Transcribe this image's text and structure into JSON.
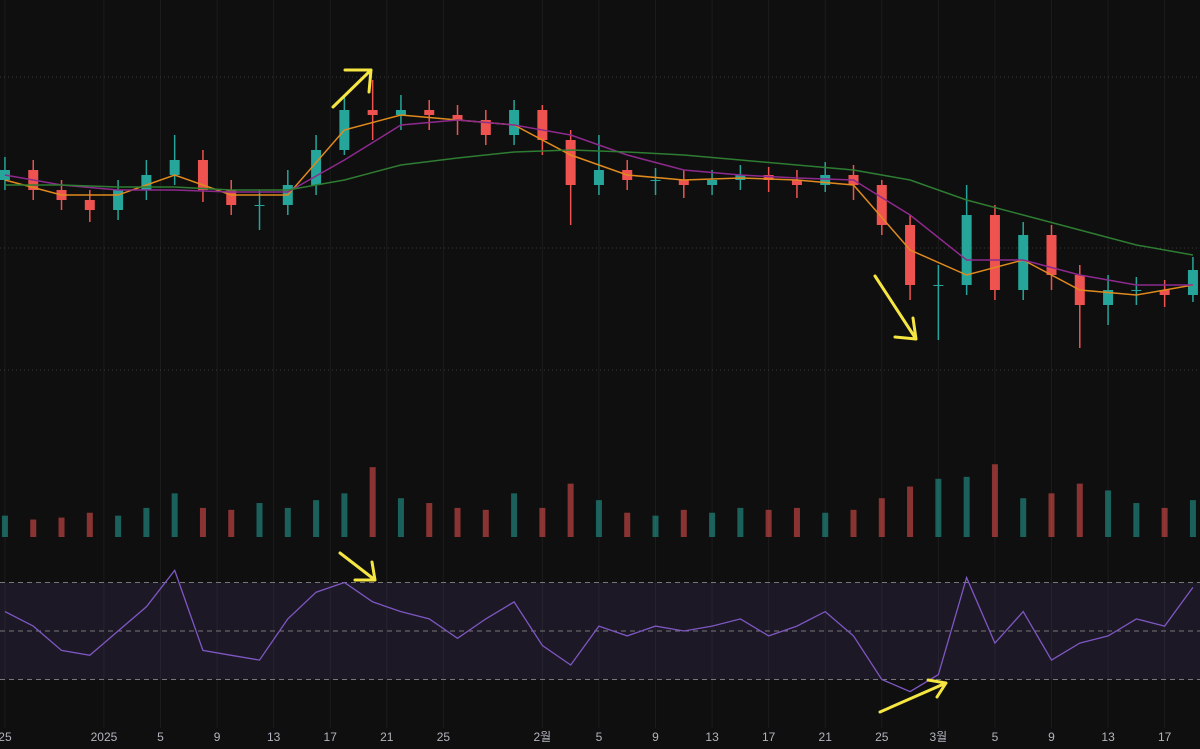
{
  "chart_data": [
    {
      "type": "candlestick",
      "x": [
        0,
        2,
        4,
        6,
        8,
        10,
        12,
        14,
        16,
        18,
        20,
        22,
        24,
        26,
        28,
        30,
        32,
        34,
        36,
        38,
        40,
        42,
        44,
        46,
        48,
        50,
        52,
        54,
        56,
        58,
        60,
        62,
        64,
        66,
        68,
        70,
        72,
        74,
        76,
        78,
        80,
        82,
        84
      ],
      "open": [
        82.0,
        83.0,
        81.0,
        80.0,
        79.0,
        81.0,
        82.5,
        84.0,
        81.0,
        79.5,
        79.5,
        81.5,
        85.0,
        89.0,
        88.5,
        89.0,
        88.5,
        88.0,
        86.5,
        89.0,
        86.0,
        81.5,
        83.0,
        82.0,
        82.0,
        81.5,
        82.0,
        82.5,
        82.0,
        81.5,
        82.5,
        81.5,
        77.5,
        71.5,
        71.5,
        78.5,
        71.0,
        76.5,
        72.5,
        69.5,
        71.0,
        71.0,
        70.5
      ],
      "high": [
        84.3,
        84,
        82,
        81,
        82,
        84,
        86.5,
        85,
        82,
        81,
        83,
        86.5,
        90.5,
        92,
        90.5,
        90,
        89.5,
        89,
        90,
        89.5,
        87,
        86.5,
        84,
        83.2,
        83,
        83,
        83.5,
        83.3,
        83,
        83.8,
        83.5,
        82,
        78.5,
        73.5,
        81.5,
        79.5,
        77.8,
        77.5,
        73.5,
        72.5,
        72.3,
        72,
        74.3
      ],
      "low": [
        81,
        80,
        79,
        77.8,
        78,
        80,
        81.5,
        79.8,
        78.5,
        77,
        78.5,
        80.5,
        84.5,
        86,
        87,
        87,
        86.5,
        85.5,
        85.5,
        84.5,
        77.5,
        80.5,
        81,
        80.5,
        80.2,
        80.5,
        81,
        80.8,
        80.2,
        80.8,
        80,
        76.5,
        70,
        66,
        70.5,
        70,
        70,
        71,
        65.2,
        67.5,
        69.5,
        69.3,
        69.8
      ],
      "close": [
        83.0,
        81.0,
        80.0,
        79.0,
        81.0,
        82.5,
        84.0,
        81.0,
        79.5,
        79.5,
        81.5,
        85.0,
        89.0,
        88.5,
        89.0,
        88.5,
        88.0,
        86.5,
        89.0,
        86.0,
        81.5,
        83.0,
        82.0,
        82.0,
        81.5,
        82.0,
        82.5,
        82.0,
        81.5,
        82.5,
        81.5,
        77.5,
        71.5,
        71.5,
        78.5,
        71.0,
        76.5,
        72.5,
        69.5,
        71.0,
        71.0,
        70.5,
        73.0
      ],
      "up_color": "#26a69a",
      "down_color": "#ef5350",
      "xlim": [
        -0.35,
        84.5
      ],
      "ylim": [
        60,
        100
      ],
      "levels": [
        92.3,
        75.2,
        63.0
      ],
      "overlay_x": [
        0,
        4,
        8,
        12,
        16,
        20,
        24,
        28,
        32,
        36,
        40,
        44,
        48,
        52,
        56,
        60,
        64,
        68,
        72,
        76,
        80,
        84
      ],
      "overlays": [
        {
          "color": "#e08a1e",
          "values": [
            82,
            80.5,
            80.5,
            82.5,
            80.5,
            80.5,
            87,
            88.5,
            88,
            87.5,
            84.5,
            82.5,
            82,
            82.2,
            82,
            81.5,
            75,
            72.5,
            74,
            71,
            70.5,
            71.5
          ]
        },
        {
          "color": "#8e2a8e",
          "values": [
            82.5,
            81.5,
            81,
            81,
            80.8,
            80.8,
            84,
            87.5,
            88,
            87.5,
            86.5,
            84.5,
            83,
            82.5,
            82.2,
            82,
            78.5,
            74,
            74,
            72.5,
            71.5,
            71.5
          ]
        },
        {
          "color": "#2e7d32",
          "values": [
            81.5,
            81.5,
            81.3,
            81.3,
            81,
            81,
            82,
            83.5,
            84.2,
            84.8,
            85,
            84.8,
            84.5,
            84,
            83.5,
            83,
            82,
            80,
            78.5,
            77,
            75.5,
            74.5
          ]
        }
      ]
    },
    {
      "type": "bar",
      "x": [
        0,
        2,
        4,
        6,
        8,
        10,
        12,
        14,
        16,
        18,
        20,
        22,
        24,
        26,
        28,
        30,
        32,
        34,
        36,
        38,
        40,
        42,
        44,
        46,
        48,
        50,
        52,
        54,
        56,
        58,
        60,
        62,
        64,
        66,
        68,
        70,
        72,
        74,
        76,
        78,
        80,
        82,
        84
      ],
      "values": [
        22,
        18,
        20,
        25,
        22,
        30,
        45,
        30,
        28,
        35,
        30,
        38,
        45,
        72,
        40,
        35,
        30,
        28,
        45,
        30,
        55,
        38,
        25,
        22,
        28,
        25,
        30,
        28,
        30,
        25,
        28,
        40,
        52,
        60,
        62,
        75,
        40,
        45,
        55,
        48,
        35,
        30,
        38
      ],
      "xlim": [
        -0.35,
        84.5
      ],
      "ylim": [
        0,
        100
      ]
    },
    {
      "type": "line",
      "x": [
        0,
        2,
        4,
        6,
        8,
        10,
        12,
        14,
        16,
        18,
        20,
        22,
        24,
        26,
        28,
        30,
        32,
        34,
        36,
        38,
        40,
        42,
        44,
        46,
        48,
        50,
        52,
        54,
        56,
        58,
        60,
        62,
        64,
        66,
        68,
        70,
        72,
        74,
        76,
        78,
        80,
        82,
        84
      ],
      "values": [
        58,
        52,
        42,
        40,
        50,
        60,
        75,
        42,
        40,
        38,
        55,
        66,
        70,
        62,
        58,
        55,
        47,
        55,
        62,
        44,
        36,
        52,
        48,
        52,
        50,
        52,
        55,
        48,
        52,
        58,
        48,
        30,
        25,
        32,
        72,
        45,
        58,
        38,
        45,
        48,
        55,
        52,
        68
      ],
      "color": "#7e57c2",
      "xlim": [
        -0.35,
        84.5
      ],
      "ylim": [
        10,
        90
      ],
      "levels": [
        70,
        50,
        30
      ],
      "xticks": [
        {
          "value": 0,
          "label": "25"
        },
        {
          "value": 7,
          "label": "2025"
        },
        {
          "value": 11,
          "label": "5"
        },
        {
          "value": 15,
          "label": "9"
        },
        {
          "value": 19,
          "label": "13"
        },
        {
          "value": 23,
          "label": "17"
        },
        {
          "value": 27,
          "label": "21"
        },
        {
          "value": 31,
          "label": "25"
        },
        {
          "value": 38,
          "label": "2월"
        },
        {
          "value": 42,
          "label": "5"
        },
        {
          "value": 46,
          "label": "9"
        },
        {
          "value": 50,
          "label": "13"
        },
        {
          "value": 54,
          "label": "17"
        },
        {
          "value": 58,
          "label": "21"
        },
        {
          "value": 62,
          "label": "25"
        },
        {
          "value": 66,
          "label": "3월"
        },
        {
          "value": 70,
          "label": "5"
        },
        {
          "value": 74,
          "label": "9"
        },
        {
          "value": 78,
          "label": "13"
        },
        {
          "value": 82,
          "label": "17"
        }
      ]
    }
  ]
}
